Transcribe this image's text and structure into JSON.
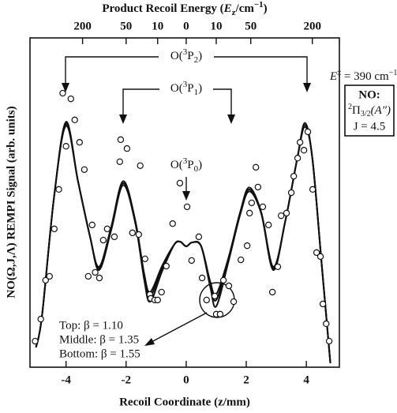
{
  "chart_data": {
    "type": "line",
    "title": [
      "Product Recoil Energy (",
      "E",
      "z",
      "/cm",
      "−1",
      ")"
    ],
    "x_label": "Recoil Coordinate (z/mm)",
    "y_label": "NO(Ω,J,Λ) REMPI Signal (arb. units)",
    "xlim": [
      -5.2,
      5.1
    ],
    "ylim": [
      0,
      100
    ],
    "xticks": [
      -4,
      -2,
      0,
      2,
      4
    ],
    "top_ticks": [
      {
        "value": -3.45,
        "label": "200"
      },
      {
        "value": -2.0,
        "label": "50"
      },
      {
        "value": -0.95,
        "label": "10"
      },
      {
        "value": 0,
        "label": "0"
      },
      {
        "value": 1.0,
        "label": "10"
      },
      {
        "value": 2.15,
        "label": "50"
      },
      {
        "value": 4.2,
        "label": "200"
      }
    ],
    "x": [
      -5.0,
      -4.8,
      -4.4,
      -4.0,
      -3.6,
      -3.2,
      -2.9,
      -2.5,
      -2.1,
      -1.7,
      -1.4,
      -1.2,
      -0.8,
      -0.4,
      -0.2,
      0,
      0.2,
      0.5,
      0.8,
      1.0,
      1.4,
      1.8,
      2.1,
      2.5,
      2.9,
      3.3,
      3.7,
      3.95,
      4.2,
      4.5,
      4.8
    ],
    "series": [
      {
        "name": "Top: β = 1.10",
        "color": "#111111",
        "values": [
          6,
          15.6,
          51.6,
          74.5,
          56.4,
          39.6,
          30.5,
          42.5,
          56.5,
          44.8,
          28.5,
          22.8,
          30.8,
          37.2,
          38.1,
          36.7,
          37.9,
          36.7,
          26,
          22.1,
          33,
          47.2,
          54.6,
          47,
          30.5,
          44.4,
          63.5,
          74.2,
          63.5,
          32.4,
          1.2
        ]
      },
      {
        "name": "Middle: β = 1.35",
        "color": "#111111",
        "values": [
          6,
          15.6,
          51.6,
          73.9,
          56.4,
          39.6,
          30,
          42,
          55.9,
          44.4,
          27.6,
          21.6,
          30,
          37.2,
          38.1,
          36.7,
          37.9,
          36.7,
          25.2,
          20.4,
          32.4,
          46.8,
          54,
          46.8,
          30,
          44.4,
          63.5,
          73.6,
          63.5,
          32.4,
          1.2
        ]
      },
      {
        "name": "Bottom: β = 1.55",
        "color": "#111111",
        "values": [
          6,
          15.6,
          51.6,
          73.3,
          56.4,
          39.6,
          29.5,
          41.5,
          55.3,
          44,
          26.7,
          19.9,
          29.2,
          37.2,
          38.1,
          36.7,
          37.9,
          36.7,
          24.4,
          18.5,
          31.8,
          46.4,
          53.4,
          46.6,
          29.5,
          44.4,
          63.5,
          73,
          63.5,
          32.4,
          1.2
        ]
      }
    ],
    "points": {
      "type": "scatter",
      "x": [
        -5.03,
        -4.84,
        -4.68,
        -4.55,
        -4.39,
        -4.24,
        -4.11,
        -4.0,
        -3.84,
        -3.71,
        -3.55,
        -3.39,
        -3.26,
        -3.13,
        -3.03,
        -2.89,
        -2.76,
        -2.63,
        -2.39,
        -2.21,
        -2.18,
        -1.97,
        -1.79,
        -1.58,
        -1.53,
        -1.37,
        -1.21,
        -1.18,
        -1.05,
        -0.95,
        -0.82,
        -0.66,
        -0.45,
        -0.21,
        0.03,
        0.18,
        0.42,
        0.53,
        0.68,
        0.95,
        1.0,
        1.13,
        1.24,
        1.42,
        1.58,
        1.82,
        2.03,
        2.11,
        2.18,
        2.32,
        2.39,
        2.55,
        2.74,
        2.87,
        3.05,
        3.16,
        3.34,
        3.5,
        3.58,
        3.71,
        3.79,
        3.92,
        4.05,
        4.21,
        4.34,
        4.47,
        4.55,
        4.66,
        4.76
      ],
      "values": [
        7.9,
        14.6,
        26.4,
        27.6,
        42.0,
        54.0,
        83.2,
        67.1,
        81.5,
        75.1,
        68.3,
        60.0,
        27.6,
        43.2,
        28.8,
        27.1,
        38.6,
        42.0,
        39.6,
        62.4,
        69.1,
        66.4,
        40.8,
        40.3,
        61.2,
        32.9,
        22.1,
        20.9,
        20.4,
        20.4,
        22.8,
        30.7,
        43.6,
        55.9,
        48.7,
        32.4,
        39.6,
        27.1,
        20.4,
        21.6,
        16.1,
        16.1,
        26.4,
        24.7,
        19.9,
        32.6,
        36.9,
        46.8,
        49.9,
        60.7,
        54.7,
        48.7,
        43.2,
        22.8,
        30.5,
        46.0,
        46.8,
        53.0,
        58.0,
        63.5,
        68.3,
        65.9,
        71.5,
        54.0,
        34.8,
        33.6,
        19.2,
        13.2,
        7.9
      ]
    },
    "annotations": {
      "p2": [
        "O(",
        "3",
        "P",
        "2",
        ")"
      ],
      "p1": [
        "O(",
        "3",
        "P",
        "1",
        ")"
      ],
      "p0": [
        "O(",
        "3",
        "P",
        "0",
        ")"
      ],
      "energy": [
        "E",
        "‡",
        " = 390 cm",
        "−1"
      ],
      "state": {
        "label": "NO:",
        "term": [
          "2",
          "Π",
          "3/2",
          "(A″)"
        ],
        "j": "J = 4.5"
      }
    }
  }
}
